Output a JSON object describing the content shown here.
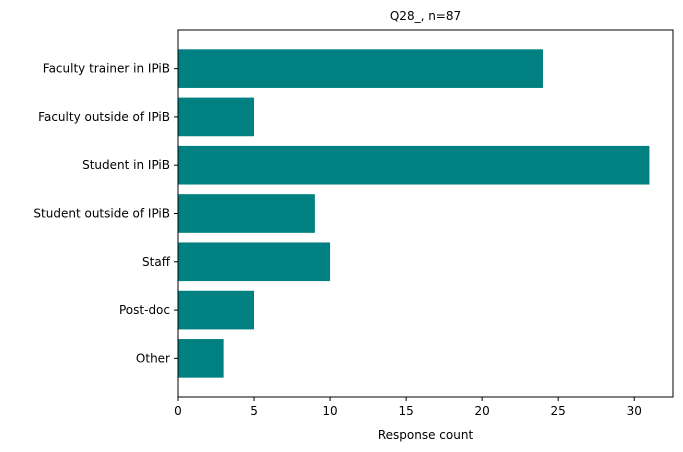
{
  "chart_data": {
    "type": "bar",
    "orientation": "horizontal",
    "title": "Q28_, n=87",
    "xlabel": "Response count",
    "ylabel": "",
    "categories": [
      "Faculty trainer in IPiB",
      "Faculty outside of IPiB",
      "Student in IPiB",
      "Student outside of IPiB",
      "Staff",
      "Post-doc",
      "Other"
    ],
    "values": [
      24,
      5,
      31,
      9,
      10,
      5,
      3
    ],
    "xlim": [
      0,
      32.55
    ],
    "xticks": [
      0,
      5,
      10,
      15,
      20,
      25,
      30
    ],
    "bar_color": "#008080",
    "grid": false,
    "legend": "none"
  }
}
